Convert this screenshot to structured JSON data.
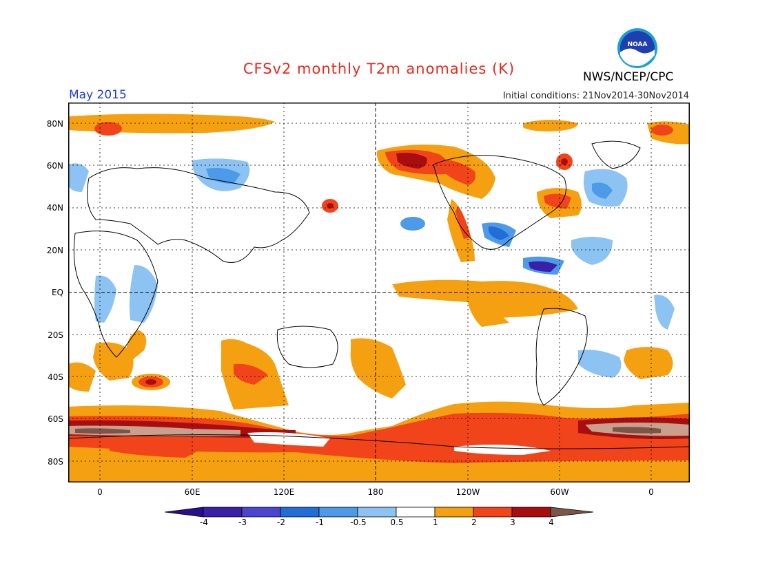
{
  "header": {
    "title": "CFSv2 monthly T2m anomalies (K)",
    "month": "May 2015",
    "initial_conditions": "Initial conditions: 21Nov2014-30Nov2014",
    "agency": "NWS/NCEP/CPC",
    "logo_text": "NOAA"
  },
  "map": {
    "lat_labels": [
      "80N",
      "60N",
      "40N",
      "20N",
      "EQ",
      "20S",
      "40S",
      "60S",
      "80S"
    ],
    "lon_labels": [
      "0",
      "60E",
      "120E",
      "180",
      "120W",
      "60W",
      "0"
    ]
  },
  "colorbar": {
    "labels": [
      "-4",
      "-3",
      "-2",
      "-1",
      "-0.5",
      "0.5",
      "1",
      "2",
      "3",
      "4"
    ],
    "colors": [
      "#3a1fa8",
      "#4a46d0",
      "#1f6fd6",
      "#4d9be8",
      "#8cc3f2",
      "#ffffff",
      "#f5a010",
      "#f2441a",
      "#a80e10",
      "#c9a08c"
    ],
    "end_low": "#2a0e8c",
    "end_high": "#7a5548"
  }
}
